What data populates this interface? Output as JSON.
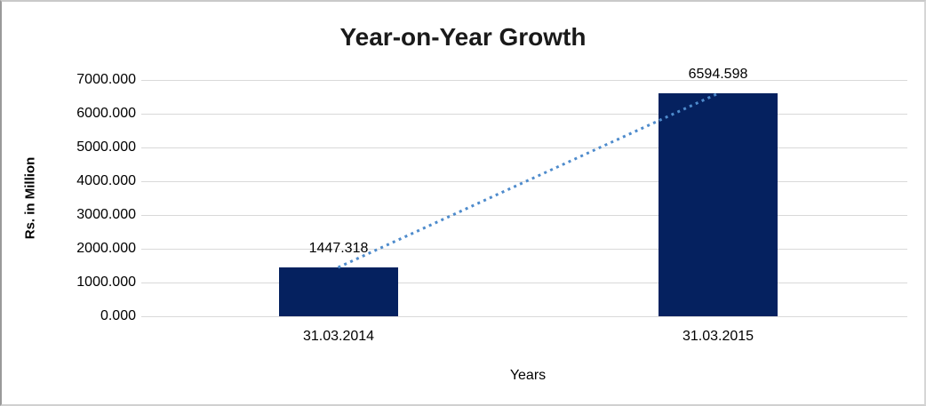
{
  "chart_data": {
    "type": "bar",
    "title": "Year-on-Year Growth",
    "xlabel": "Years",
    "ylabel": "Rs. in Million",
    "categories": [
      "31.03.2014",
      "31.03.2015"
    ],
    "values": [
      1447.318,
      6594.598
    ],
    "data_labels": [
      "1447.318",
      "6594.598"
    ],
    "ylim": [
      0,
      7000
    ],
    "ytick_step": 1000,
    "ytick_labels": [
      "0.000",
      "1000.000",
      "2000.000",
      "3000.000",
      "4000.000",
      "5000.000",
      "6000.000",
      "7000.000"
    ],
    "grid": true,
    "legend_position": "none",
    "trendline": {
      "type": "linear",
      "style": "dotted",
      "connects": "bar tops",
      "color": "#4e8bcc"
    },
    "colors": {
      "bar": "#05215f",
      "gridline": "#d9d9d9",
      "background": "#ffffff",
      "text": "#000000",
      "trendline": "#4e8bcc"
    }
  }
}
